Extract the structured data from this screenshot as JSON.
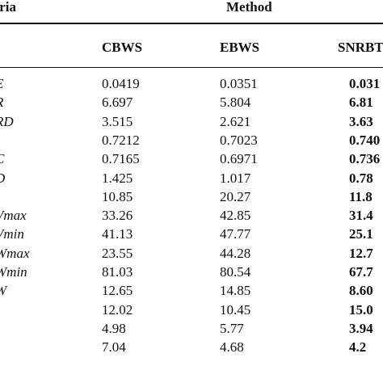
{
  "header": {
    "criteria_label": "teria",
    "method_label": "Method"
  },
  "columns": [
    "CBWS",
    "EBWS",
    "SNRBT"
  ],
  "rows": [
    {
      "criterion": "E",
      "cbws": "0.0419",
      "ebws": "0.0351",
      "snrbt": "0.031"
    },
    {
      "criterion": "R",
      "cbws": "6.697",
      "ebws": "5.804",
      "snrbt": "6.81"
    },
    {
      "criterion": "RD",
      "cbws": "3.515",
      "ebws": "2.621",
      "snrbt": "3.63"
    },
    {
      "criterion": "",
      "cbws": "0.7212",
      "ebws": "0.7023",
      "snrbt": "0.740"
    },
    {
      "criterion": "C",
      "cbws": "0.7165",
      "ebws": "0.6971",
      "snrbt": "0.736"
    },
    {
      "criterion": "D",
      "cbws": "1.425",
      "ebws": "1.017",
      "snrbt": "0.78"
    },
    {
      "criterion": "'",
      "cbws": "10.85",
      "ebws": "20.27",
      "snrbt": "11.8"
    },
    {
      "criterion": "Vmax",
      "cbws": "33.26",
      "ebws": "42.85",
      "snrbt": "31.4"
    },
    {
      "criterion": "Vmin",
      "cbws": "41.13",
      "ebws": "47.77",
      "snrbt": "25.1"
    },
    {
      "criterion": "Wmax",
      "cbws": "23.55",
      "ebws": "44.28",
      "snrbt": "12.7"
    },
    {
      "criterion": "Wmin",
      "cbws": "81.03",
      "ebws": "80.54",
      "snrbt": "67.7"
    },
    {
      "criterion": "W",
      "cbws": "12.65",
      "ebws": "14.85",
      "snrbt": "8.60"
    },
    {
      "criterion": "",
      "cbws": "12.02",
      "ebws": "10.45",
      "snrbt": "15.0"
    },
    {
      "criterion": "",
      "cbws": "4.98",
      "ebws": "5.77",
      "snrbt": "3.94"
    },
    {
      "criterion": "",
      "cbws": "7.04",
      "ebws": "4.68",
      "snrbt": "4.2"
    }
  ]
}
